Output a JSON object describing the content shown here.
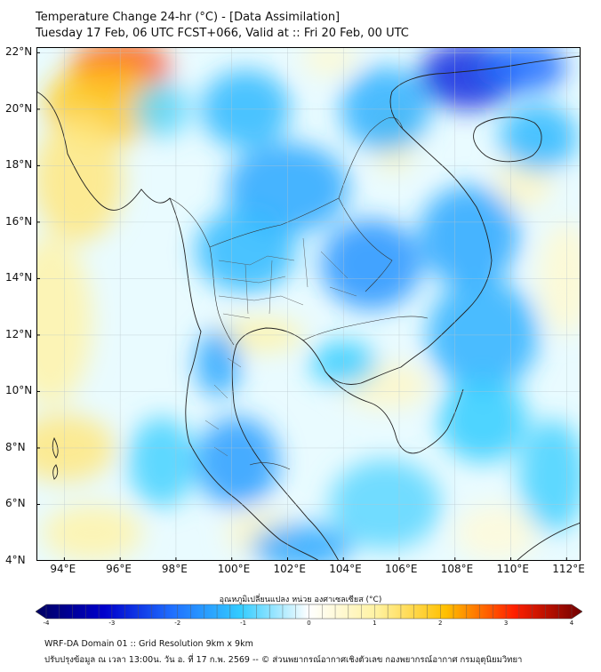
{
  "title_line1": "Temperature Change 24-hr (°C) - [Data Assimilation]",
  "title_line2": "Tuesday 17 Feb, 06 UTC FCST+066, Valid at :: Fri 20 Feb, 00 UTC",
  "map": {
    "lon_range": [
      93,
      112.5
    ],
    "lat_range": [
      4,
      22.2
    ],
    "lat_ticks": [
      {
        "value": 22,
        "label": "22°N"
      },
      {
        "value": 20,
        "label": "20°N"
      },
      {
        "value": 18,
        "label": "18°N"
      },
      {
        "value": 16,
        "label": "16°N"
      },
      {
        "value": 14,
        "label": "14°N"
      },
      {
        "value": 12,
        "label": "12°N"
      },
      {
        "value": 10,
        "label": "10°N"
      },
      {
        "value": 8,
        "label": "8°N"
      },
      {
        "value": 6,
        "label": "6°N"
      },
      {
        "value": 4,
        "label": "4°N"
      }
    ],
    "lon_ticks": [
      {
        "value": 94,
        "label": "94°E"
      },
      {
        "value": 96,
        "label": "96°E"
      },
      {
        "value": 98,
        "label": "98°E"
      },
      {
        "value": 100,
        "label": "100°E"
      },
      {
        "value": 102,
        "label": "102°E"
      },
      {
        "value": 104,
        "label": "104°E"
      },
      {
        "value": 106,
        "label": "106°E"
      },
      {
        "value": 108,
        "label": "108°E"
      },
      {
        "value": 110,
        "label": "110°E"
      },
      {
        "value": 112,
        "label": "112°E"
      }
    ],
    "grid": true,
    "background_color": "#e9fbff",
    "field_blobs": [
      {
        "lon": 96.0,
        "lat": 21.4,
        "value": 2.8,
        "rlon": 1.8,
        "rlat": 1.0
      },
      {
        "lon": 95.5,
        "lat": 20.2,
        "value": 1.8,
        "rlon": 2.2,
        "rlat": 1.4
      },
      {
        "lon": 94.5,
        "lat": 17.5,
        "value": 1.2,
        "rlon": 1.6,
        "rlat": 2.2
      },
      {
        "lon": 93.5,
        "lat": 12.5,
        "value": 0.9,
        "rlon": 1.5,
        "rlat": 3.0
      },
      {
        "lon": 94.0,
        "lat": 8.0,
        "value": 1.2,
        "rlon": 1.8,
        "rlat": 1.2
      },
      {
        "lon": 95.0,
        "lat": 5.0,
        "value": 0.9,
        "rlon": 1.8,
        "rlat": 1.0
      },
      {
        "lon": 101.0,
        "lat": 12.0,
        "value": 0.9,
        "rlon": 1.6,
        "rlat": 0.6
      },
      {
        "lon": 105.5,
        "lat": 10.2,
        "value": 0.6,
        "rlon": 1.6,
        "rlat": 0.8
      },
      {
        "lon": 105.8,
        "lat": 19.0,
        "value": 0.8,
        "rlon": 0.8,
        "rlat": 1.2
      },
      {
        "lon": 110.5,
        "lat": 17.5,
        "value": 0.6,
        "rlon": 1.0,
        "rlat": 1.0
      },
      {
        "lon": 103.5,
        "lat": 21.8,
        "value": 0.5,
        "rlon": 1.0,
        "rlat": 0.6
      },
      {
        "lon": 101.0,
        "lat": 5.0,
        "value": 0.6,
        "rlon": 1.2,
        "rlat": 0.8
      },
      {
        "lon": 112.0,
        "lat": 14.0,
        "value": 0.5,
        "rlon": 1.0,
        "rlat": 2.0
      },
      {
        "lon": 109.5,
        "lat": 5.0,
        "value": 0.4,
        "rlon": 1.5,
        "rlat": 1.0
      },
      {
        "lon": 108.5,
        "lat": 21.2,
        "value": -2.6,
        "rlon": 1.8,
        "rlat": 1.2
      },
      {
        "lon": 110.5,
        "lat": 21.5,
        "value": -2.0,
        "rlon": 1.5,
        "rlat": 0.9
      },
      {
        "lon": 102.0,
        "lat": 17.2,
        "value": -1.4,
        "rlon": 2.2,
        "rlat": 1.6
      },
      {
        "lon": 100.5,
        "lat": 15.0,
        "value": -1.2,
        "rlon": 1.8,
        "rlat": 1.5
      },
      {
        "lon": 105.0,
        "lat": 14.5,
        "value": -1.6,
        "rlon": 1.8,
        "rlat": 1.6
      },
      {
        "lon": 108.5,
        "lat": 15.5,
        "value": -1.4,
        "rlon": 1.8,
        "rlat": 1.8
      },
      {
        "lon": 99.5,
        "lat": 11.0,
        "value": -1.4,
        "rlon": 0.8,
        "rlat": 1.2
      },
      {
        "lon": 100.2,
        "lat": 7.5,
        "value": -1.5,
        "rlon": 1.5,
        "rlat": 1.6
      },
      {
        "lon": 102.5,
        "lat": 4.5,
        "value": -1.4,
        "rlon": 1.8,
        "rlat": 0.8
      },
      {
        "lon": 104.0,
        "lat": 11.0,
        "value": -1.0,
        "rlon": 1.2,
        "rlat": 0.8
      },
      {
        "lon": 109.0,
        "lat": 12.0,
        "value": -1.3,
        "rlon": 2.0,
        "rlat": 2.0
      },
      {
        "lon": 109.0,
        "lat": 9.0,
        "value": -1.0,
        "rlon": 1.6,
        "rlat": 1.5
      },
      {
        "lon": 111.0,
        "lat": 19.0,
        "value": -1.2,
        "rlon": 1.4,
        "rlat": 1.2
      },
      {
        "lon": 105.5,
        "lat": 20.0,
        "value": -1.3,
        "rlon": 1.6,
        "rlat": 1.5
      },
      {
        "lon": 100.5,
        "lat": 20.0,
        "value": -1.2,
        "rlon": 1.6,
        "rlat": 1.4
      },
      {
        "lon": 97.5,
        "lat": 20.0,
        "value": -0.8,
        "rlon": 1.0,
        "rlat": 1.0
      },
      {
        "lon": 97.5,
        "lat": 7.5,
        "value": -0.9,
        "rlon": 1.2,
        "rlat": 1.6
      },
      {
        "lon": 105.5,
        "lat": 6.0,
        "value": -0.8,
        "rlon": 2.0,
        "rlat": 1.6
      },
      {
        "lon": 111.5,
        "lat": 7.0,
        "value": -0.9,
        "rlon": 1.2,
        "rlat": 2.0
      }
    ]
  },
  "colorbar": {
    "title": "อุณหภูมิเปลี่ยนแปลง หน่วย องศาเซลเซียส (°C)",
    "min": -4,
    "max": 4,
    "ticks": [
      {
        "value": -4,
        "label": "-4"
      },
      {
        "value": -3,
        "label": "-3"
      },
      {
        "value": -2,
        "label": "-2"
      },
      {
        "value": -1,
        "label": "-1"
      },
      {
        "value": 0,
        "label": "0"
      },
      {
        "value": 1,
        "label": "1"
      },
      {
        "value": 2,
        "label": "2"
      },
      {
        "value": 3,
        "label": "3"
      },
      {
        "value": 4,
        "label": "4"
      }
    ],
    "colors": [
      "#000060",
      "#0000cc",
      "#1f6fff",
      "#33ccff",
      "#ffffff",
      "#fff2a0",
      "#ffc000",
      "#ff2000",
      "#700000"
    ]
  },
  "footer_line1": "WRF-DA Domain 01 :: Grid Resolution 9km x 9km",
  "footer_line2": "ปรับปรุงข้อมูล ณ เวลา 13:00น. วัน อ. ที่ 17 ก.พ. 2569 -- © ส่วนพยากรณ์อากาศเชิงตัวเลข กองพยากรณ์อากาศ กรมอุตุนิยมวิทยา"
}
